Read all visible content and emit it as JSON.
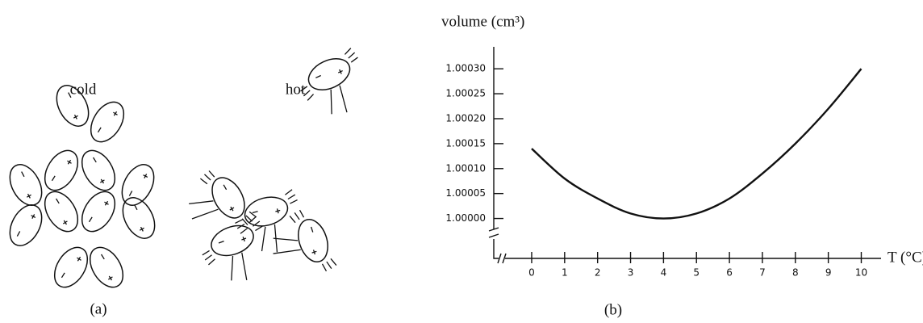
{
  "panel_a": {
    "cold_label": "cold",
    "hot_label": "hot",
    "caption": "(a)"
  },
  "chart_data": {
    "type": "line",
    "caption": "(b)",
    "y_label": "volume (cm³)",
    "x_label": "T (°C)",
    "x": [
      0,
      1,
      2,
      3,
      4,
      5,
      6,
      7,
      8,
      9,
      10
    ],
    "series": [
      {
        "color": "#111111",
        "values": [
          1.00014,
          1.00008,
          1.00004,
          1.00001,
          1.0,
          1.00001,
          1.00004,
          1.00009,
          1.00015,
          1.00022,
          1.0003
        ]
      }
    ],
    "xlim": [
      -1.15,
      10.6
    ],
    "ylim": [
      0.99992,
      1.000344
    ],
    "xticks": [
      0,
      1,
      2,
      3,
      4,
      5,
      6,
      7,
      8,
      9,
      10
    ],
    "yticks": [
      {
        "value": 1.0,
        "label": "1.00000"
      },
      {
        "value": 1.00005,
        "label": "1.00005"
      },
      {
        "value": 1.0001,
        "label": "1.00010"
      },
      {
        "value": 1.00015,
        "label": "1.00015"
      },
      {
        "value": 1.0002,
        "label": "1.00020"
      },
      {
        "value": 1.00025,
        "label": "1.00025"
      },
      {
        "value": 1.0003,
        "label": "1.00030"
      }
    ],
    "grid": false
  }
}
